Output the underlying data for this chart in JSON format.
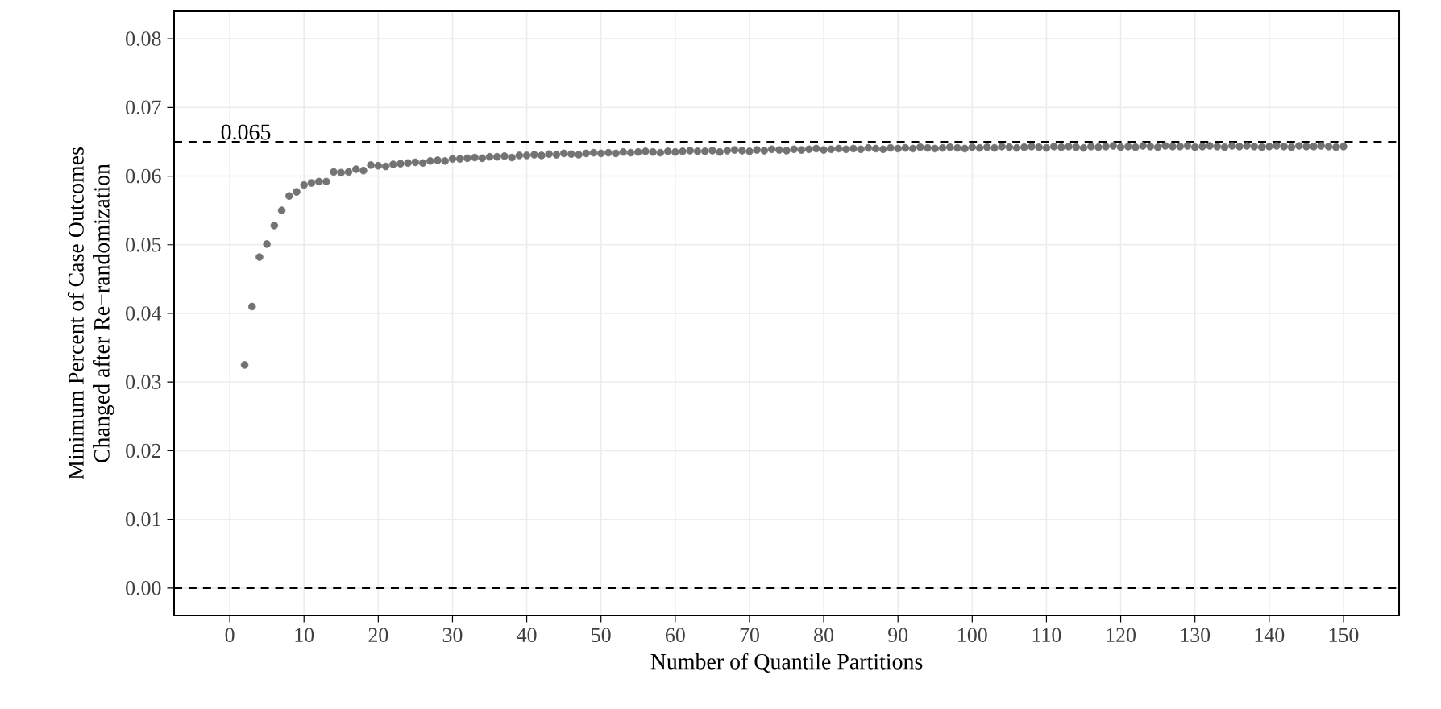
{
  "chart_data": {
    "type": "scatter",
    "xlabel": "Number of Quantile Partitions",
    "ylabel": "Minimum Percent of Case Outcomes\nChanged after Re−randomization",
    "x": [
      2,
      3,
      4,
      5,
      6,
      7,
      8,
      9,
      10,
      11,
      12,
      13,
      14,
      15,
      16,
      17,
      18,
      19,
      20,
      21,
      22,
      23,
      24,
      25,
      26,
      27,
      28,
      29,
      30,
      31,
      32,
      33,
      34,
      35,
      36,
      37,
      38,
      39,
      40,
      41,
      42,
      43,
      44,
      45,
      46,
      47,
      48,
      49,
      50,
      51,
      52,
      53,
      54,
      55,
      56,
      57,
      58,
      59,
      60,
      61,
      62,
      63,
      64,
      65,
      66,
      67,
      68,
      69,
      70,
      71,
      72,
      73,
      74,
      75,
      76,
      77,
      78,
      79,
      80,
      81,
      82,
      83,
      84,
      85,
      86,
      87,
      88,
      89,
      90,
      91,
      92,
      93,
      94,
      95,
      96,
      97,
      98,
      99,
      100,
      101,
      102,
      103,
      104,
      105,
      106,
      107,
      108,
      109,
      110,
      111,
      112,
      113,
      114,
      115,
      116,
      117,
      118,
      119,
      120,
      121,
      122,
      123,
      124,
      125,
      126,
      127,
      128,
      129,
      130,
      131,
      132,
      133,
      134,
      135,
      136,
      137,
      138,
      139,
      140,
      141,
      142,
      143,
      144,
      145,
      146,
      147,
      148,
      149,
      150
    ],
    "series": [
      {
        "color": "#737373",
        "values": [
          0.0325,
          0.041,
          0.0482,
          0.0501,
          0.0528,
          0.055,
          0.0571,
          0.0577,
          0.0587,
          0.059,
          0.0592,
          0.0592,
          0.0606,
          0.0605,
          0.0606,
          0.061,
          0.0608,
          0.0616,
          0.0615,
          0.0614,
          0.0617,
          0.0618,
          0.0619,
          0.062,
          0.0619,
          0.0622,
          0.0623,
          0.0622,
          0.0625,
          0.0625,
          0.0626,
          0.0627,
          0.0626,
          0.0628,
          0.0628,
          0.0629,
          0.0627,
          0.063,
          0.063,
          0.0631,
          0.063,
          0.0632,
          0.0631,
          0.0633,
          0.0632,
          0.0631,
          0.0633,
          0.0634,
          0.0633,
          0.0634,
          0.0633,
          0.0635,
          0.0634,
          0.0635,
          0.0636,
          0.0635,
          0.0634,
          0.0636,
          0.0635,
          0.0636,
          0.0637,
          0.0636,
          0.0636,
          0.0637,
          0.0635,
          0.0637,
          0.0638,
          0.0637,
          0.0636,
          0.0638,
          0.0637,
          0.0639,
          0.0638,
          0.0637,
          0.0639,
          0.0638,
          0.0639,
          0.064,
          0.0638,
          0.0639,
          0.064,
          0.0639,
          0.064,
          0.0639,
          0.0641,
          0.064,
          0.0639,
          0.0641,
          0.064,
          0.0641,
          0.064,
          0.0642,
          0.0641,
          0.064,
          0.0641,
          0.0642,
          0.0641,
          0.064,
          0.0642,
          0.0641,
          0.0642,
          0.0641,
          0.0643,
          0.0642,
          0.0641,
          0.0642,
          0.0643,
          0.0642,
          0.0641,
          0.0643,
          0.0642,
          0.0643,
          0.0642,
          0.0641,
          0.0643,
          0.0642,
          0.0643,
          0.0644,
          0.0642,
          0.0643,
          0.0642,
          0.0644,
          0.0643,
          0.0642,
          0.0644,
          0.0643,
          0.0643,
          0.0644,
          0.0642,
          0.0643,
          0.0644,
          0.0643,
          0.0642,
          0.0644,
          0.0643,
          0.0644,
          0.0643,
          0.0642,
          0.0643,
          0.0644,
          0.0643,
          0.0642,
          0.0644,
          0.0643,
          0.0643,
          0.0644,
          0.0643,
          0.0642,
          0.0643
        ]
      }
    ],
    "xlim": [
      -7.5,
      157.5
    ],
    "ylim": [
      -0.004,
      0.084
    ],
    "xticks": [
      0,
      10,
      20,
      30,
      40,
      50,
      60,
      70,
      80,
      90,
      100,
      110,
      120,
      130,
      140,
      150
    ],
    "yticks": [
      {
        "value": 0,
        "label": "0.00"
      },
      {
        "value": 0.01,
        "label": "0.01"
      },
      {
        "value": 0.02,
        "label": "0.02"
      },
      {
        "value": 0.03,
        "label": "0.03"
      },
      {
        "value": 0.04,
        "label": "0.04"
      },
      {
        "value": 0.05,
        "label": "0.05"
      },
      {
        "value": 0.06,
        "label": "0.06"
      },
      {
        "value": 0.07,
        "label": "0.07"
      },
      {
        "value": 0.08,
        "label": "0.08"
      }
    ],
    "ref_lines": [
      {
        "axis": "y",
        "value": 0,
        "line_style": "dashed",
        "color": "#000000"
      },
      {
        "axis": "y",
        "value": 0.065,
        "label": "0.065",
        "line_style": "dashed",
        "color": "#000000"
      }
    ],
    "grid": true,
    "marker": "circle"
  }
}
